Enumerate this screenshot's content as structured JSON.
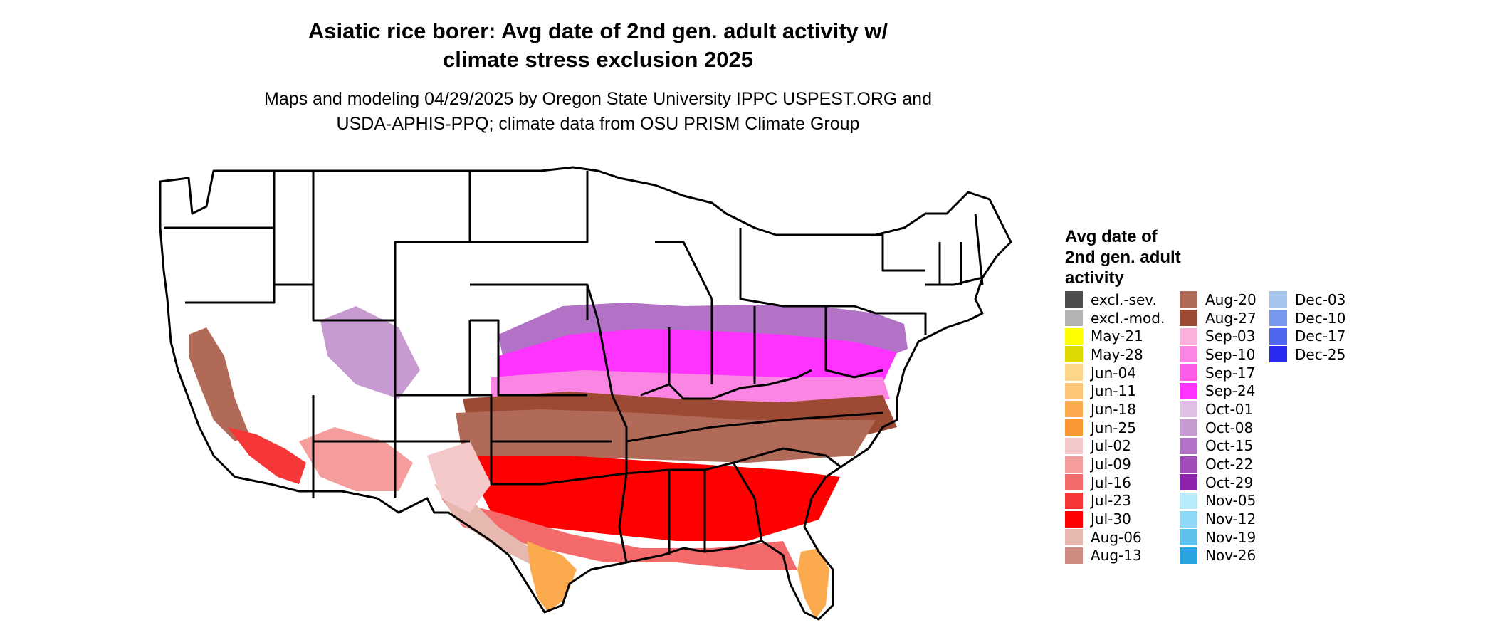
{
  "title_line1": "Asiatic rice borer: Avg date of 2nd gen. adult activity w/",
  "title_line2": "climate stress exclusion 2025",
  "subtitle_line1": "Maps and modeling 04/29/2025 by Oregon State University IPPC USPEST.ORG and",
  "subtitle_line2": "USDA-APHIS-PPQ; climate data from OSU PRISM Climate Group",
  "legend": {
    "title_line1": "Avg date of",
    "title_line2": "2nd gen. adult",
    "title_line3": "activity",
    "columns": [
      [
        {
          "label": "excl.-sev.",
          "color": "#4d4d4d"
        },
        {
          "label": "excl.-mod.",
          "color": "#b3b3b3"
        },
        {
          "label": "May-21",
          "color": "#ffff00"
        },
        {
          "label": "May-28",
          "color": "#dcd800"
        },
        {
          "label": "Jun-04",
          "color": "#fdd68a"
        },
        {
          "label": "Jun-11",
          "color": "#fcc678"
        },
        {
          "label": "Jun-18",
          "color": "#fbab4e"
        },
        {
          "label": "Jun-25",
          "color": "#fb9635"
        },
        {
          "label": "Jul-02",
          "color": "#f5c9c9"
        },
        {
          "label": "Jul-09",
          "color": "#f59d9d"
        },
        {
          "label": "Jul-16",
          "color": "#f46a6a"
        },
        {
          "label": "Jul-23",
          "color": "#f53737"
        },
        {
          "label": "Jul-30",
          "color": "#ff0000"
        },
        {
          "label": "Aug-06",
          "color": "#e7b8b0"
        },
        {
          "label": "Aug-13",
          "color": "#cc8c82"
        }
      ],
      [
        {
          "label": "Aug-20",
          "color": "#b26a58"
        },
        {
          "label": "Aug-27",
          "color": "#9c4a33"
        },
        {
          "label": "Sep-03",
          "color": "#fbb0dc"
        },
        {
          "label": "Sep-10",
          "color": "#fb85e2"
        },
        {
          "label": "Sep-17",
          "color": "#fc5ce8"
        },
        {
          "label": "Sep-24",
          "color": "#ff33ff"
        },
        {
          "label": "Oct-01",
          "color": "#dfc0e3"
        },
        {
          "label": "Oct-08",
          "color": "#c89ad2"
        },
        {
          "label": "Oct-15",
          "color": "#b272c6"
        },
        {
          "label": "Oct-22",
          "color": "#a04cba"
        },
        {
          "label": "Oct-29",
          "color": "#8e24ad"
        },
        {
          "label": "Nov-05",
          "color": "#b8ecfb"
        },
        {
          "label": "Nov-12",
          "color": "#8cd8f5"
        },
        {
          "label": "Nov-19",
          "color": "#5ec0ec"
        },
        {
          "label": "Nov-26",
          "color": "#2aa4df"
        }
      ],
      [
        {
          "label": "Dec-03",
          "color": "#a4c4ec"
        },
        {
          "label": "Dec-10",
          "color": "#7898ed"
        },
        {
          "label": "Dec-17",
          "color": "#4f66f0"
        },
        {
          "label": "Dec-25",
          "color": "#2a2af0"
        }
      ]
    ]
  }
}
